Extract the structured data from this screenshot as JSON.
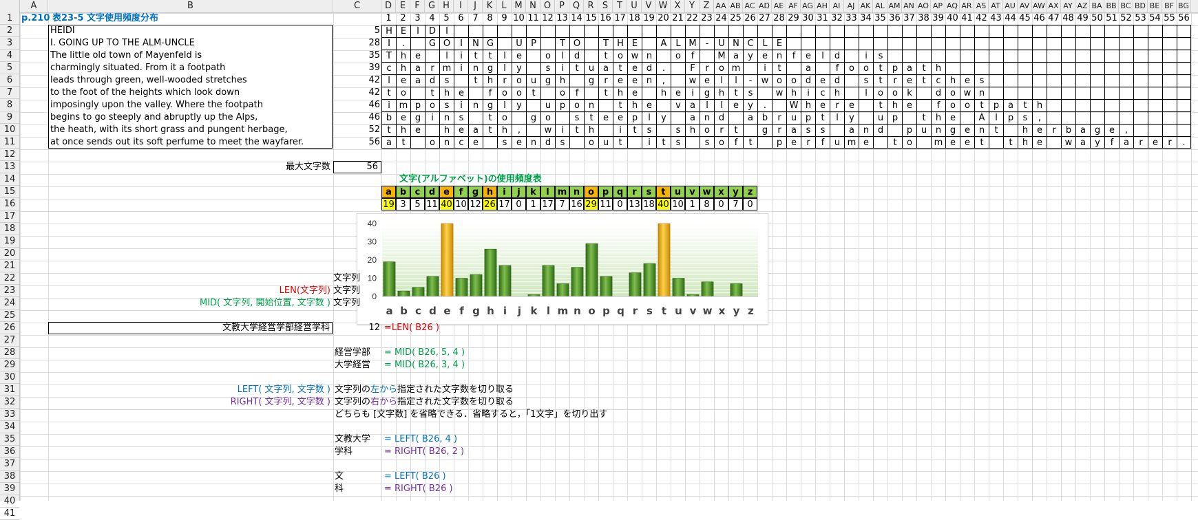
{
  "sheet": {
    "cell_a1": "p.210",
    "title": "表23-5 文字使用頻度分布",
    "col_letters_main": [
      "A",
      "B",
      "C"
    ],
    "col_letters_d": [
      "D",
      "E",
      "F",
      "G",
      "H",
      "I",
      "J",
      "K",
      "L",
      "M",
      "N",
      "O",
      "P",
      "Q",
      "R",
      "S",
      "T",
      "U",
      "V",
      "W",
      "X",
      "Y",
      "Z",
      "AA",
      "AB",
      "AC",
      "AD",
      "AE",
      "AF",
      "AG",
      "AH",
      "AI",
      "AJ",
      "AK",
      "AL",
      "AM",
      "AN",
      "AO",
      "AP",
      "AQ",
      "AR",
      "AS",
      "AT",
      "AU",
      "AV",
      "AW",
      "AX",
      "AY",
      "AZ",
      "BA",
      "BB",
      "BC",
      "BD",
      "BE",
      "BF",
      "BG"
    ],
    "col_numbers": [
      "1",
      "2",
      "3",
      "4",
      "5",
      "6",
      "7",
      "8",
      "9",
      "10",
      "11",
      "12",
      "13",
      "14",
      "15",
      "16",
      "17",
      "18",
      "19",
      "20",
      "21",
      "22",
      "23",
      "24",
      "25",
      "26",
      "27",
      "28",
      "29",
      "30",
      "31",
      "32",
      "33",
      "34",
      "35",
      "36",
      "37",
      "38",
      "39",
      "40",
      "41",
      "42",
      "43",
      "44",
      "45",
      "46",
      "47",
      "48",
      "49",
      "50",
      "51",
      "52",
      "53",
      "54",
      "55",
      "56"
    ],
    "rows": [
      "1",
      "2",
      "3",
      "4",
      "5",
      "6",
      "7",
      "8",
      "9",
      "10",
      "11",
      "12",
      "13",
      "14",
      "15",
      "16",
      "17",
      "18",
      "19",
      "20",
      "21",
      "22",
      "23",
      "24",
      "25",
      "26",
      "27",
      "28",
      "29",
      "30",
      "31",
      "32",
      "33",
      "34",
      "35",
      "36",
      "37",
      "38",
      "39",
      "40",
      "41"
    ]
  },
  "text_lines": [
    {
      "text": "HEIDI",
      "len": "5",
      "chars": "HEIDI"
    },
    {
      "text": "I. GOING UP TO THE ALM-UNCLE",
      "len": "28",
      "chars": "I. GOING UP TO THE ALM-UNCLE"
    },
    {
      "text": "The little old town of Mayenfeld is",
      "len": "35",
      "chars": "The little old town of Mayenfeld is"
    },
    {
      "text": "charmingly situated. From it a footpath",
      "len": "39",
      "chars": "charmingly situated. From it a footpath"
    },
    {
      "text": "leads through green, well-wooded stretches",
      "len": "42",
      "chars": "leads through green, well-wooded stretches"
    },
    {
      "text": "to the foot of the heights which look down",
      "len": "42",
      "chars": "to the foot of the heights which look down"
    },
    {
      "text": "imposingly upon the valley. Where the footpath",
      "len": "46",
      "chars": "imposingly upon the valley. Where the footpath"
    },
    {
      "text": "begins to go steeply and abruptly up the Alps,",
      "len": "46",
      "chars": "begins to go steeply and abruptly up the Alps,"
    },
    {
      "text": "the heath, with its short grass and pungent herbage,",
      "len": "52",
      "chars": "the heath, with its short grass and pungent herbage,"
    },
    {
      "text": "at once sends out its soft perfume to meet the wayfarer.",
      "len": "56",
      "chars": "at once sends out its soft perfume to meet the wayfarer."
    }
  ],
  "max_chars": {
    "label": "最大文字数",
    "value": "56"
  },
  "freq_table": {
    "title": "文字(アルファベット)の使用頻度表",
    "letters": [
      "a",
      "b",
      "c",
      "d",
      "e",
      "f",
      "g",
      "h",
      "i",
      "j",
      "k",
      "l",
      "m",
      "n",
      "o",
      "p",
      "q",
      "r",
      "s",
      "t",
      "u",
      "v",
      "w",
      "x",
      "y",
      "z"
    ],
    "counts": [
      "19",
      "3",
      "5",
      "11",
      "40",
      "10",
      "12",
      "26",
      "17",
      "0",
      "1",
      "17",
      "7",
      "16",
      "29",
      "11",
      "0",
      "13",
      "18",
      "40",
      "10",
      "1",
      "8",
      "0",
      "7",
      "0"
    ],
    "highlight": [
      0,
      4,
      7,
      14,
      19
    ],
    "header_color": "#92d050",
    "highlight_color": "#ffff00"
  },
  "chart_data": {
    "type": "bar",
    "categories": [
      "a",
      "b",
      "c",
      "d",
      "e",
      "f",
      "g",
      "h",
      "i",
      "j",
      "k",
      "l",
      "m",
      "n",
      "o",
      "p",
      "q",
      "r",
      "s",
      "t",
      "u",
      "v",
      "w",
      "x",
      "y",
      "z"
    ],
    "values": [
      19,
      3,
      5,
      11,
      40,
      10,
      12,
      26,
      17,
      0,
      1,
      17,
      7,
      16,
      29,
      11,
      0,
      13,
      18,
      40,
      10,
      1,
      8,
      0,
      7,
      0
    ],
    "yticks": [
      "0",
      "10",
      "20",
      "30",
      "40"
    ],
    "ylim": [
      0,
      40
    ],
    "bar_color": "#4e8f2a",
    "highlight_color": "#f5b400",
    "highlight_index": [
      4,
      19
    ]
  },
  "formulas": {
    "row22_c": "文字列",
    "len_label": "LEN(文字列)",
    "row23_c": "文字列",
    "mid_label": "MID( 文字列, 開始位置, 文字数 )",
    "row24_c": "文字列",
    "b26": "文教大学経営学部経営学科",
    "c26": "12",
    "d26": "=LEN( B26 )",
    "c28": "経営学部",
    "d28": "= MID( B26, 5, 4 )",
    "c29": "大学経営",
    "d29": "= MID( B26, 3, 4 )",
    "left_label": "LEFT( 文字列, 文字数 )",
    "right_label": "RIGHT( 文字列, 文字数 )",
    "c31_a": "文字列の",
    "c31_b": "左から",
    "c31_c": "指定された文字数を切り取る",
    "c32_a": "文字列の",
    "c32_b": "右から",
    "c32_c": "指定された文字数を切り取る",
    "c33": "どちらも [文字数] を省略できる．省略すると，「1文字」を切り出す",
    "c35": "文教大学",
    "d35": "= LEFT( B26, 4 )",
    "c36": "学科",
    "d36": "= RIGHT( B26, 2 )",
    "c38": "文",
    "d38": "= LEFT( B26 )",
    "c39": "科",
    "d39": "= RIGHT( B26 )"
  }
}
